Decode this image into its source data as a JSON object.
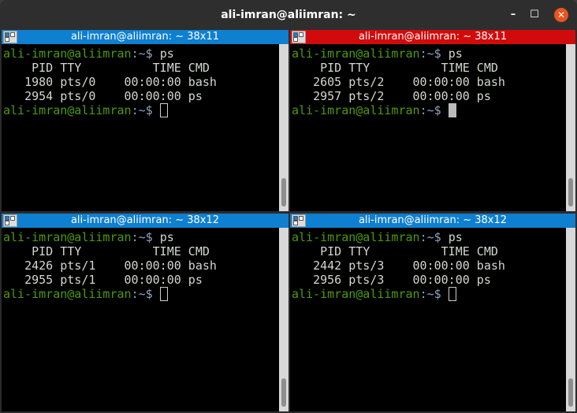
{
  "window": {
    "title": "ali-imran@aliimran: ~",
    "minimize": "–",
    "maximize": "☐",
    "close": "✕"
  },
  "panes": [
    {
      "title": "ali-imran@aliimran: ~ 38x11",
      "prompt_user": "ali-imran@aliimran",
      "prompt_path": ":~$",
      "command": "ps",
      "header": "    PID TTY          TIME CMD",
      "rows": [
        "   1980 pts/0    00:00:00 bash",
        "   2954 pts/0    00:00:00 ps"
      ],
      "focused": false
    },
    {
      "title": "ali-imran@aliimran: ~ 38x11",
      "prompt_user": "ali-imran@aliimran",
      "prompt_path": ":~$",
      "command": "ps",
      "header": "    PID TTY          TIME CMD",
      "rows": [
        "   2605 pts/2    00:00:00 bash",
        "   2957 pts/2    00:00:00 ps"
      ],
      "focused": true
    },
    {
      "title": "ali-imran@aliimran: ~ 38x12",
      "prompt_user": "ali-imran@aliimran",
      "prompt_path": ":~$",
      "command": "ps",
      "header": "    PID TTY          TIME CMD",
      "rows": [
        "   2426 pts/1    00:00:00 bash",
        "   2955 pts/1    00:00:00 ps"
      ],
      "focused": false
    },
    {
      "title": "ali-imran@aliimran: ~ 38x12",
      "prompt_user": "ali-imran@aliimran",
      "prompt_path": ":~$",
      "command": "ps",
      "header": "    PID TTY          TIME CMD",
      "rows": [
        "   2442 pts/3    00:00:00 bash",
        "   2956 pts/3    00:00:00 ps"
      ],
      "focused": false
    }
  ],
  "colors": {
    "focused_title": "#d10b0b",
    "unfocused_title": "#0f7fd0",
    "prompt": "#4e9a06"
  }
}
